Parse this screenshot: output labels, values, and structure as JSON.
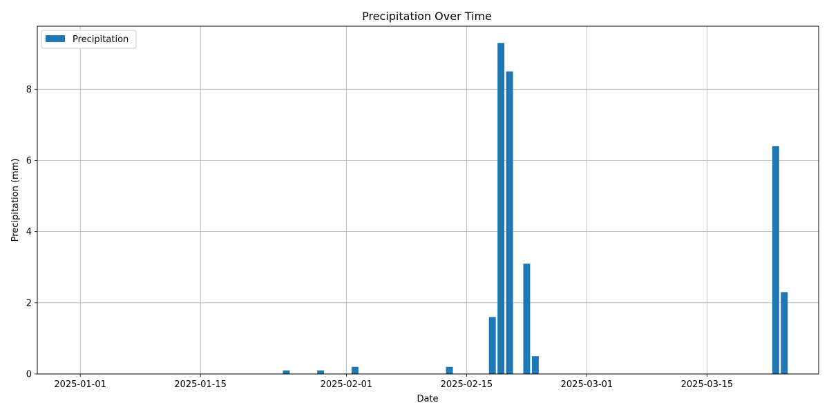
{
  "chart_data": {
    "type": "bar",
    "title": "Precipitation Over Time",
    "xlabel": "Date",
    "ylabel": "Precipitation (mm)",
    "x": [
      "2025-01-25",
      "2025-01-29",
      "2025-02-02",
      "2025-02-13",
      "2025-02-18",
      "2025-02-19",
      "2025-02-20",
      "2025-02-22",
      "2025-02-23",
      "2025-03-23",
      "2025-03-24"
    ],
    "series": [
      {
        "name": "Precipitation",
        "values": [
          0.1,
          0.1,
          0.2,
          0.2,
          1.6,
          9.3,
          8.5,
          3.1,
          0.5,
          6.4,
          2.3
        ],
        "color": "#1f77b4"
      }
    ],
    "xlim": [
      "2024-12-27",
      "2025-03-28"
    ],
    "xticks": [
      "2025-01-01",
      "2025-01-15",
      "2025-02-01",
      "2025-02-15",
      "2025-03-01",
      "2025-03-15"
    ],
    "ylim": [
      0,
      9.77
    ],
    "yticks": [
      0,
      2,
      4,
      6,
      8
    ],
    "grid": true,
    "legend": "top-left"
  }
}
